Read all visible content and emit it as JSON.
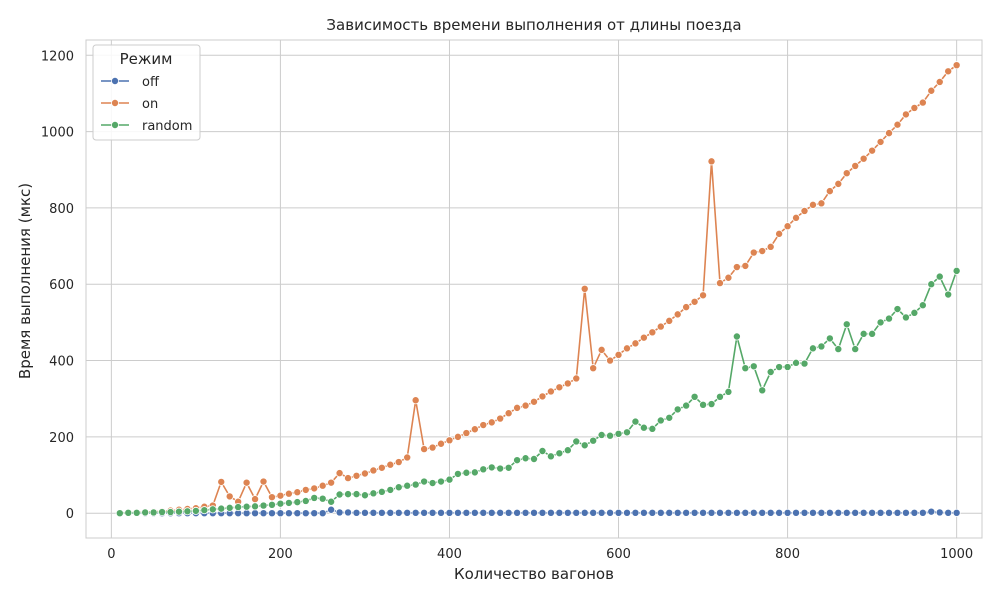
{
  "chart_data": {
    "type": "line",
    "title": "Зависимость времени выполнения от длины поезда",
    "xlabel": "Количество вагонов",
    "ylabel": "Время выполнения (мкс)",
    "xlim": [
      -30,
      1030
    ],
    "ylim": [
      -65,
      1240
    ],
    "xticks": [
      0,
      200,
      400,
      600,
      800,
      1000
    ],
    "yticks": [
      0,
      200,
      400,
      600,
      800,
      1000,
      1200
    ],
    "grid": true,
    "legend": {
      "title": "Режим",
      "placement": "top-left"
    },
    "series": [
      {
        "name": "off",
        "color": "#4c72b0",
        "x": [
          10,
          20,
          30,
          40,
          50,
          60,
          70,
          80,
          90,
          100,
          110,
          120,
          130,
          140,
          150,
          160,
          170,
          180,
          190,
          200,
          210,
          220,
          230,
          240,
          250,
          260,
          270,
          280,
          290,
          300,
          310,
          320,
          330,
          340,
          350,
          360,
          370,
          380,
          390,
          400,
          410,
          420,
          430,
          440,
          450,
          460,
          470,
          480,
          490,
          500,
          510,
          520,
          530,
          540,
          550,
          560,
          570,
          580,
          590,
          600,
          610,
          620,
          630,
          640,
          650,
          660,
          670,
          680,
          690,
          700,
          710,
          720,
          730,
          740,
          750,
          760,
          770,
          780,
          790,
          800,
          810,
          820,
          830,
          840,
          850,
          860,
          870,
          880,
          890,
          900,
          910,
          920,
          930,
          940,
          950,
          960,
          970,
          980,
          990,
          1000
        ],
        "y": [
          0,
          0,
          0,
          0,
          0,
          0,
          0,
          0,
          0,
          0,
          0,
          0,
          0,
          0,
          0,
          0,
          0,
          0,
          0,
          0,
          0,
          0,
          0,
          0,
          0,
          9,
          2,
          2,
          1,
          1,
          1,
          1,
          1,
          1,
          1,
          1,
          1,
          1,
          1,
          1,
          1,
          1,
          1,
          1,
          1,
          1,
          1,
          1,
          1,
          1,
          1,
          1,
          1,
          1,
          1,
          1,
          1,
          1,
          1,
          1,
          1,
          1,
          1,
          1,
          1,
          1,
          1,
          1,
          1,
          1,
          1,
          1,
          1,
          1,
          1,
          1,
          1,
          1,
          1,
          1,
          1,
          1,
          1,
          1,
          1,
          1,
          1,
          1,
          1,
          1,
          1,
          1,
          1,
          1,
          1,
          1,
          4,
          2,
          1,
          1
        ]
      },
      {
        "name": "on",
        "color": "#dd8452",
        "x": [
          10,
          20,
          30,
          40,
          50,
          60,
          70,
          80,
          90,
          100,
          110,
          120,
          130,
          140,
          150,
          160,
          170,
          180,
          190,
          200,
          210,
          220,
          230,
          240,
          250,
          260,
          270,
          280,
          290,
          300,
          310,
          320,
          330,
          340,
          350,
          360,
          370,
          380,
          390,
          400,
          410,
          420,
          430,
          440,
          450,
          460,
          470,
          480,
          490,
          500,
          510,
          520,
          530,
          540,
          550,
          560,
          570,
          580,
          590,
          600,
          610,
          620,
          630,
          640,
          650,
          660,
          670,
          680,
          690,
          700,
          710,
          720,
          730,
          740,
          750,
          760,
          770,
          780,
          790,
          800,
          810,
          820,
          830,
          840,
          850,
          860,
          870,
          880,
          890,
          900,
          910,
          920,
          930,
          940,
          950,
          960,
          970,
          980,
          990,
          1000
        ],
        "y": [
          0,
          1,
          2,
          3,
          4,
          5,
          7,
          9,
          11,
          13,
          17,
          20,
          82,
          44,
          30,
          80,
          37,
          83,
          42,
          46,
          51,
          55,
          61,
          65,
          72,
          80,
          105,
          92,
          98,
          104,
          112,
          119,
          127,
          134,
          146,
          296,
          168,
          172,
          182,
          191,
          200,
          210,
          220,
          231,
          238,
          248,
          262,
          276,
          282,
          292,
          306,
          319,
          330,
          340,
          353,
          588,
          380,
          428,
          400,
          415,
          432,
          445,
          460,
          474,
          489,
          504,
          521,
          540,
          554,
          571,
          922,
          603,
          617,
          645,
          648,
          683,
          687,
          698,
          732,
          752,
          774,
          792,
          808,
          812,
          844,
          863,
          891,
          910,
          929,
          950,
          973,
          996,
          1018,
          1045,
          1062,
          1076,
          1107,
          1130,
          1158,
          1174
        ]
      },
      {
        "name": "random",
        "color": "#55a868",
        "x": [
          10,
          20,
          30,
          40,
          50,
          60,
          70,
          80,
          90,
          100,
          110,
          120,
          130,
          140,
          150,
          160,
          170,
          180,
          190,
          200,
          210,
          220,
          230,
          240,
          250,
          260,
          270,
          280,
          290,
          300,
          310,
          320,
          330,
          340,
          350,
          360,
          370,
          380,
          390,
          400,
          410,
          420,
          430,
          440,
          450,
          460,
          470,
          480,
          490,
          500,
          510,
          520,
          530,
          540,
          550,
          560,
          570,
          580,
          590,
          600,
          610,
          620,
          630,
          640,
          650,
          660,
          670,
          680,
          690,
          700,
          710,
          720,
          730,
          740,
          750,
          760,
          770,
          780,
          790,
          800,
          810,
          820,
          830,
          840,
          850,
          860,
          870,
          880,
          890,
          900,
          910,
          920,
          930,
          940,
          950,
          960,
          970,
          980,
          990,
          1000
        ],
        "y": [
          0,
          1,
          1,
          2,
          2,
          3,
          3,
          4,
          5,
          6,
          8,
          10,
          12,
          14,
          16,
          17,
          18,
          20,
          22,
          25,
          27,
          29,
          32,
          40,
          38,
          30,
          49,
          50,
          50,
          47,
          52,
          56,
          61,
          68,
          72,
          75,
          83,
          79,
          83,
          88,
          103,
          106,
          107,
          115,
          120,
          117,
          119,
          139,
          144,
          142,
          163,
          149,
          157,
          165,
          188,
          178,
          190,
          205,
          203,
          208,
          212,
          240,
          224,
          221,
          243,
          250,
          272,
          282,
          305,
          284,
          286,
          305,
          318,
          463,
          380,
          385,
          322,
          370,
          383,
          383,
          394,
          392,
          432,
          437,
          458,
          430,
          495,
          430,
          470,
          470,
          500,
          510,
          535,
          513,
          525,
          545,
          600,
          620,
          573,
          635
        ]
      }
    ]
  }
}
